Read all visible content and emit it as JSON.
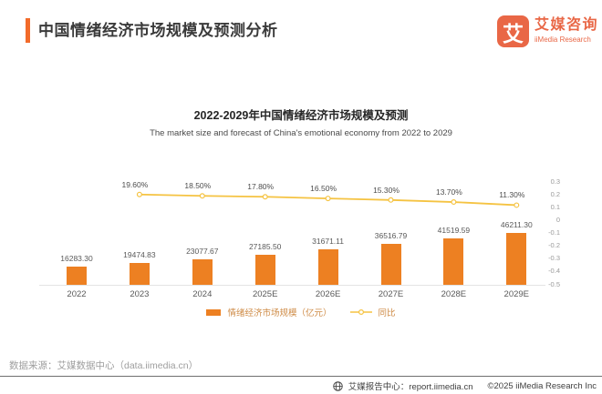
{
  "header": {
    "title": "中国情绪经济市场规模及预测分析",
    "logo": {
      "glyph": "艾",
      "name_cn": "艾媒咨询",
      "name_en": "iiMedia Research"
    }
  },
  "chart_data": {
    "type": "bar",
    "title": "2022-2029年中国情绪经济市场规模及预测",
    "subtitle": "The market size and forecast of China's emotional economy from 2022 to 2029",
    "categories": [
      "2022",
      "2023",
      "2024",
      "2025E",
      "2026E",
      "2027E",
      "2028E",
      "2029E"
    ],
    "series": [
      {
        "name": "情绪经济市场规模（亿元）",
        "type": "bar",
        "color": "#ED8022",
        "values": [
          16283.3,
          19474.83,
          23077.67,
          27185.5,
          31671.11,
          36516.79,
          41519.59,
          46211.3
        ],
        "labels": [
          "16283.30",
          "19474.83",
          "23077.67",
          "27185.50",
          "31671.11",
          "36516.79",
          "41519.59",
          "46211.30"
        ]
      },
      {
        "name": "同比",
        "type": "line",
        "color": "#F5C342",
        "start_category_index": 1,
        "values_pct": [
          19.6,
          18.5,
          17.8,
          16.5,
          15.3,
          13.7,
          11.3
        ],
        "labels": [
          "19.60%",
          "18.50%",
          "17.80%",
          "16.50%",
          "15.30%",
          "13.70%",
          "11.30%"
        ]
      }
    ],
    "right_axis": {
      "min": -0.5,
      "max": 0.3,
      "ticks": [
        "0.3",
        "0.2",
        "0.1",
        "0",
        "-0.1",
        "-0.2",
        "-0.3",
        "-0.4",
        "-0.5"
      ]
    },
    "legend_position": "bottom",
    "grid": false
  },
  "source": "数据来源：艾媒数据中心（data.iimedia.cn）",
  "footer": {
    "report_center": "艾媒报告中心：report.iimedia.cn",
    "copyright": "©2025 iiMedia Research Inc"
  },
  "colors": {
    "brand_orange": "#F26B2A",
    "logo_orange": "#E96746",
    "bar_orange": "#ED8022",
    "line_gold": "#F5C342"
  }
}
